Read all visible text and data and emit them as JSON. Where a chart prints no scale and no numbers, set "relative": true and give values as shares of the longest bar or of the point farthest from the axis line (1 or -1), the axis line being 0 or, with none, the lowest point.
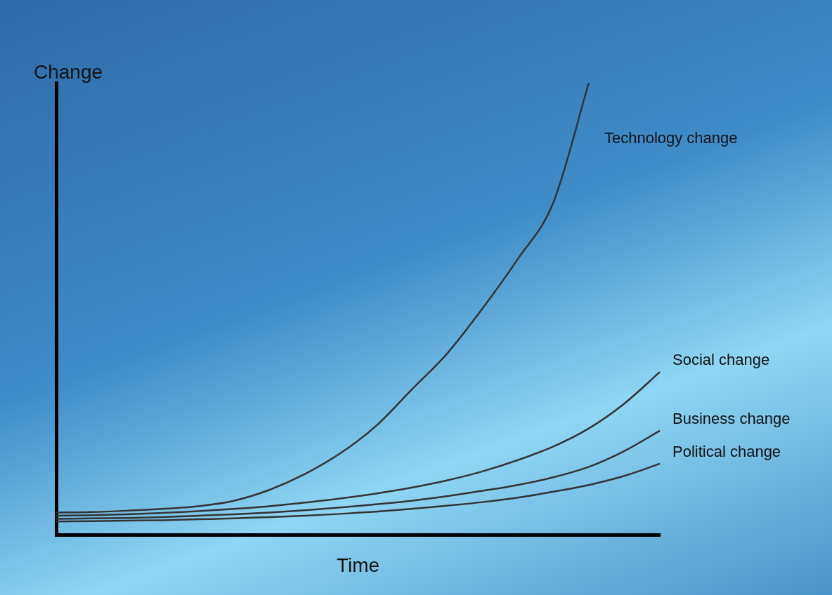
{
  "chart_data": {
    "type": "line",
    "xlabel": "Time",
    "ylabel": "Change",
    "relative": true,
    "marker": "none",
    "line_style": "solid",
    "categories": [
      null,
      null,
      null,
      null,
      null,
      null,
      null,
      null,
      null,
      null,
      null,
      null,
      null,
      null,
      null,
      null,
      null,
      null
    ],
    "series": [
      {
        "name": "Technology change",
        "color": "#333333",
        "values": [
          0.049,
          0.05,
          0.053,
          0.057,
          0.063,
          0.075,
          0.099,
          0.134,
          0.18,
          0.24,
          0.32,
          0.4,
          0.5,
          0.61,
          0.735,
          1,
          null,
          null
        ]
      },
      {
        "name": "Social change",
        "color": "#333333",
        "values": [
          0.042,
          0.043,
          0.045,
          0.048,
          0.052,
          0.057,
          0.063,
          0.071,
          0.08,
          0.091,
          0.104,
          0.12,
          0.14,
          0.165,
          0.195,
          0.235,
          0.29,
          0.36
        ]
      },
      {
        "name": "Business change",
        "color": "#333333",
        "values": [
          0.035,
          0.036,
          0.037,
          0.039,
          0.042,
          0.045,
          0.049,
          0.054,
          0.06,
          0.067,
          0.075,
          0.085,
          0.097,
          0.11,
          0.127,
          0.15,
          0.185,
          0.23
        ]
      },
      {
        "name": "Political change",
        "color": "#333333",
        "values": [
          0.029,
          0.03,
          0.031,
          0.032,
          0.034,
          0.036,
          0.039,
          0.042,
          0.046,
          0.051,
          0.057,
          0.064,
          0.072,
          0.082,
          0.095,
          0.11,
          0.13,
          0.157
        ]
      }
    ]
  }
}
